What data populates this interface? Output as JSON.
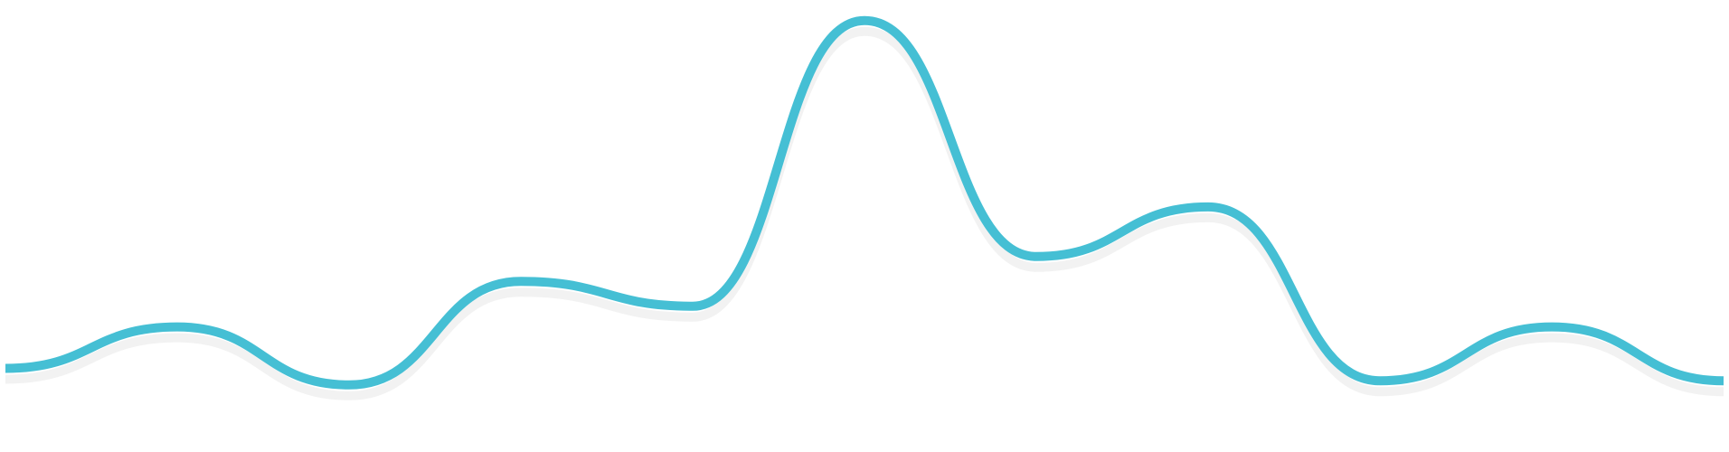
{
  "chart_data": {
    "type": "line",
    "title": "",
    "xlabel": "",
    "ylabel": "",
    "x": [
      0,
      1,
      2,
      3,
      4,
      5,
      6,
      7,
      8,
      9,
      10
    ],
    "xlim": [
      0,
      10
    ],
    "ylim": [
      0,
      100
    ],
    "grid": false,
    "legend": "none",
    "smooth": true,
    "series": [
      {
        "values": [
          13,
          23,
          9,
          34,
          28,
          97,
          40,
          52,
          10,
          23,
          10
        ],
        "color": "#45bfd4"
      }
    ],
    "shadow_color": "#e8e8e8"
  }
}
